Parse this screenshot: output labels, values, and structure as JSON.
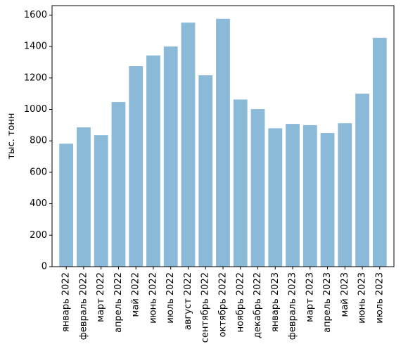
{
  "chart_data": {
    "type": "bar",
    "categories": [
      "январь 2022",
      "февраль 2022",
      "март 2022",
      "апрель 2022",
      "май 2022",
      "июнь 2022",
      "июль 2022",
      "август 2022",
      "сентябрь 2022",
      "октябрь 2022",
      "ноябрь 2022",
      "декабрь 2022",
      "январь 2023",
      "февраль 2023",
      "март 2023",
      "апрель 2023",
      "май 2023",
      "июнь 2023",
      "июль 2023"
    ],
    "values": [
      782,
      886,
      836,
      1047,
      1275,
      1343,
      1400,
      1552,
      1217,
      1576,
      1063,
      1002,
      880,
      908,
      900,
      850,
      912,
      1100,
      1455
    ],
    "title": "",
    "xlabel": "",
    "ylabel": "тыс. тонн",
    "ylim": [
      0,
      1660
    ],
    "yticks": [
      0,
      200,
      400,
      600,
      800,
      1000,
      1200,
      1400,
      1600
    ],
    "grid": false,
    "bar_color": "#8bbad9"
  }
}
